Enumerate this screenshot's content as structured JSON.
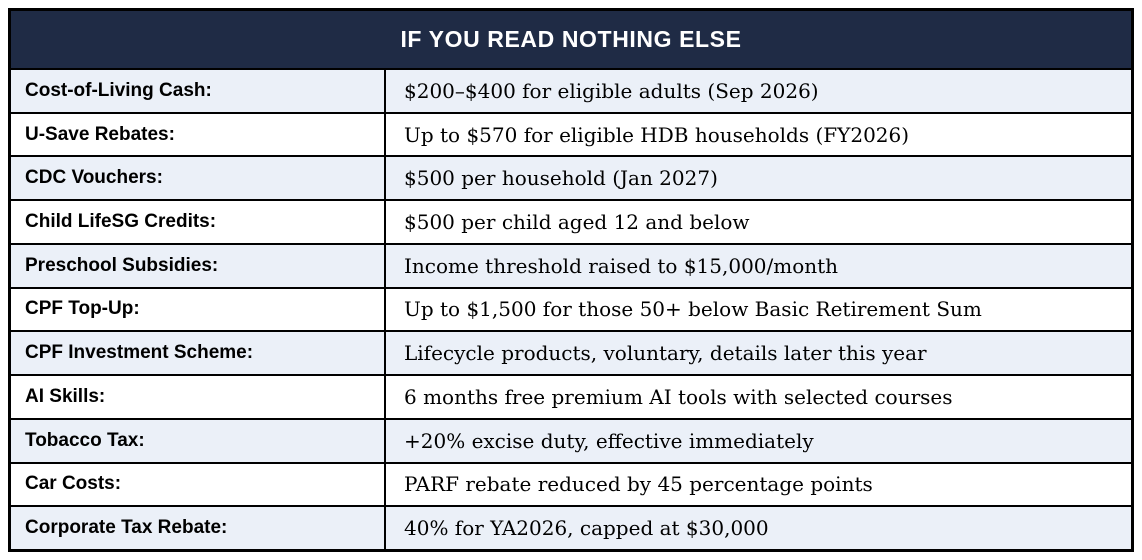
{
  "header": {
    "title": "IF YOU READ NOTHING ELSE"
  },
  "colors": {
    "header_bg": "#1F2B45",
    "header_text": "#FFFFFF",
    "row_alt_bg": "#EBF0F8",
    "row_bg": "#FFFFFF",
    "border": "#000000",
    "body_text": "#000000"
  },
  "table": {
    "rows": [
      {
        "label": "Cost-of-Living Cash:",
        "value": "$200–$400 for eligible adults (Sep 2026)"
      },
      {
        "label": "U-Save Rebates:",
        "value": "Up to $570 for eligible HDB households (FY2026)"
      },
      {
        "label": "CDC Vouchers:",
        "value": "$500 per household (Jan 2027)"
      },
      {
        "label": "Child LifeSG Credits:",
        "value": "$500 per child aged 12 and below"
      },
      {
        "label": "Preschool Subsidies:",
        "value": "Income threshold raised to $15,000/month"
      },
      {
        "label": "CPF Top-Up:",
        "value": "Up to $1,500 for those 50+ below Basic Retirement Sum"
      },
      {
        "label": "CPF Investment Scheme:",
        "value": "Lifecycle products, voluntary, details later this year"
      },
      {
        "label": "AI Skills:",
        "value": "6 months free premium AI tools with selected courses"
      },
      {
        "label": "Tobacco Tax:",
        "value": "+20% excise duty, effective immediately"
      },
      {
        "label": "Car Costs:",
        "value": "PARF rebate reduced by 45 percentage points"
      },
      {
        "label": "Corporate Tax Rebate:",
        "value": "40% for YA2026, capped at $30,000"
      }
    ]
  }
}
